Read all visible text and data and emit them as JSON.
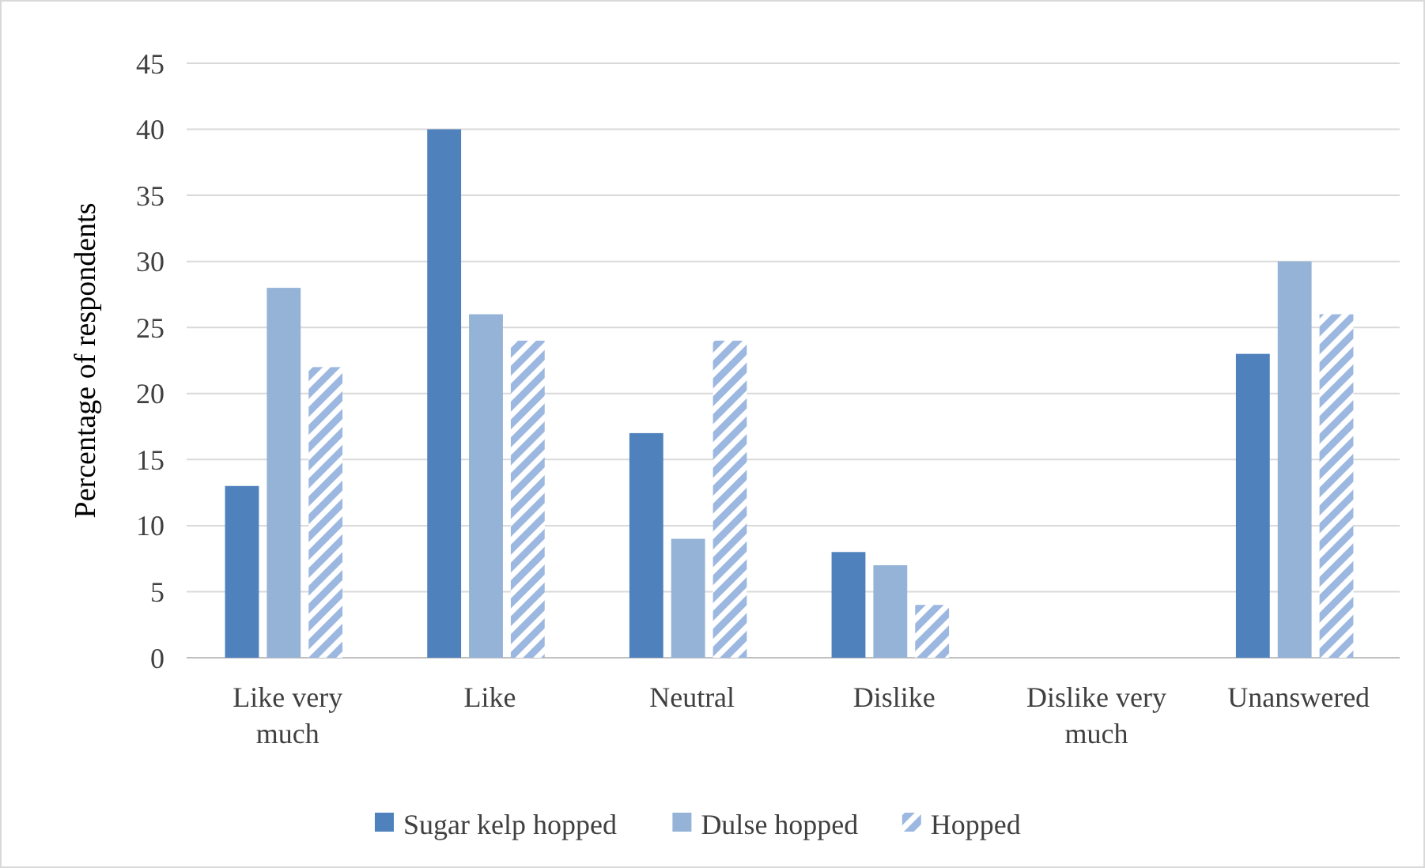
{
  "chart_data": {
    "type": "bar",
    "ylabel": "Percentage of respondents",
    "categories": [
      "Like very much",
      "Like",
      "Neutral",
      "Dislike",
      "Dislike very much",
      "Unanswered"
    ],
    "series": [
      {
        "name": "Sugar kelp hopped",
        "color": "#4f81bd",
        "values": [
          13,
          40,
          17,
          8,
          0,
          23
        ]
      },
      {
        "name": "Dulse hopped",
        "color": "#95b3d7",
        "values": [
          28,
          26,
          9,
          7,
          0,
          30
        ]
      },
      {
        "name": "Hopped",
        "color": "#9db8e0",
        "values": [
          22,
          24,
          24,
          4,
          0,
          26
        ]
      }
    ],
    "ylim": [
      0,
      45
    ],
    "yticks": [
      0,
      5,
      10,
      15,
      20,
      25,
      30,
      35,
      40,
      45
    ],
    "grid": "y",
    "legend": "bottom"
  }
}
